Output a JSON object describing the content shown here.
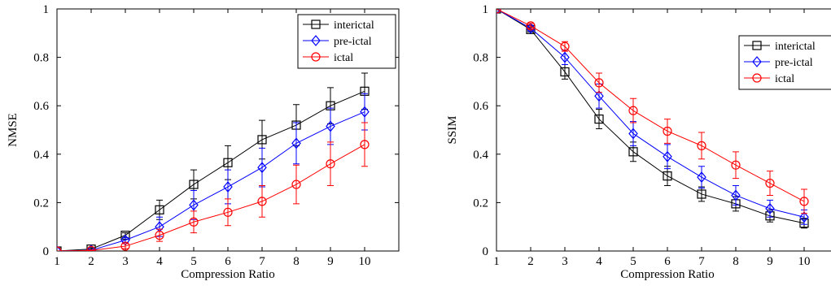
{
  "chart_data": [
    {
      "type": "line",
      "xlabel": "Compression Ratio",
      "ylabel": "NMSE",
      "x": [
        1,
        2,
        3,
        4,
        5,
        6,
        7,
        8,
        9,
        10
      ],
      "xlim": [
        1,
        11
      ],
      "ylim": [
        0,
        1
      ],
      "xticks": [
        "1",
        "2",
        "3",
        "4",
        "5",
        "6",
        "7",
        "8",
        "9",
        "10"
      ],
      "yticks": [
        "0",
        "0.2",
        "0.4",
        "0.6",
        "0.8",
        "1"
      ],
      "legend_position": "top-right",
      "grid": false,
      "series": [
        {
          "name": "interictal",
          "color": "#000000",
          "marker": "square",
          "values": [
            0.0,
            0.008,
            0.065,
            0.17,
            0.275,
            0.365,
            0.46,
            0.52,
            0.6,
            0.66
          ],
          "errors": [
            0.0,
            0.005,
            0.01,
            0.04,
            0.06,
            0.07,
            0.08,
            0.085,
            0.075,
            0.075
          ]
        },
        {
          "name": "pre-ictal",
          "color": "#0000ff",
          "marker": "diamond",
          "values": [
            0.0,
            0.003,
            0.045,
            0.1,
            0.19,
            0.265,
            0.345,
            0.445,
            0.515,
            0.575
          ],
          "errors": [
            0.0,
            0.003,
            0.01,
            0.04,
            0.06,
            0.07,
            0.08,
            0.085,
            0.075,
            0.075
          ]
        },
        {
          "name": "ictal",
          "color": "#ff0000",
          "marker": "circle",
          "values": [
            0.0,
            0.002,
            0.02,
            0.065,
            0.12,
            0.16,
            0.205,
            0.275,
            0.36,
            0.44
          ],
          "errors": [
            0.0,
            0.002,
            0.01,
            0.025,
            0.045,
            0.055,
            0.065,
            0.08,
            0.09,
            0.09
          ]
        }
      ]
    },
    {
      "type": "line",
      "xlabel": "Compression Ratio",
      "ylabel": "SSIM",
      "x": [
        1,
        2,
        3,
        4,
        5,
        6,
        7,
        8,
        9,
        10
      ],
      "xlim": [
        1,
        11
      ],
      "ylim": [
        0,
        1
      ],
      "xticks": [
        "1",
        "2",
        "3",
        "4",
        "5",
        "6",
        "7",
        "8",
        "9",
        "10"
      ],
      "yticks": [
        "0",
        "0.2",
        "0.4",
        "0.6",
        "0.8",
        "1"
      ],
      "legend_position": "top-right",
      "grid": false,
      "series": [
        {
          "name": "interictal",
          "color": "#000000",
          "marker": "square",
          "values": [
            1.0,
            0.915,
            0.74,
            0.545,
            0.41,
            0.31,
            0.235,
            0.195,
            0.145,
            0.115
          ],
          "errors": [
            0.0,
            0.01,
            0.03,
            0.04,
            0.04,
            0.04,
            0.03,
            0.03,
            0.025,
            0.02
          ]
        },
        {
          "name": "pre-ictal",
          "color": "#0000ff",
          "marker": "diamond",
          "values": [
            1.0,
            0.92,
            0.8,
            0.64,
            0.485,
            0.39,
            0.305,
            0.23,
            0.175,
            0.14
          ],
          "errors": [
            0.0,
            0.01,
            0.03,
            0.05,
            0.05,
            0.05,
            0.045,
            0.04,
            0.035,
            0.03
          ]
        },
        {
          "name": "ictal",
          "color": "#ff0000",
          "marker": "circle",
          "values": [
            1.0,
            0.93,
            0.845,
            0.695,
            0.58,
            0.495,
            0.435,
            0.355,
            0.28,
            0.205
          ],
          "errors": [
            0.0,
            0.01,
            0.02,
            0.04,
            0.05,
            0.05,
            0.055,
            0.055,
            0.05,
            0.05
          ]
        }
      ]
    }
  ]
}
